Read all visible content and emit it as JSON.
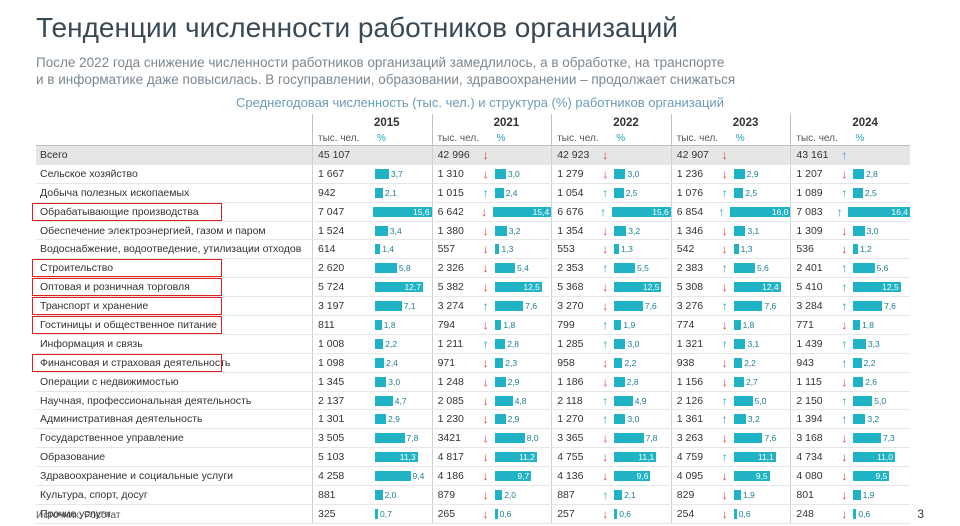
{
  "title": "Тенденции численности работников организаций",
  "subtitle_line1": "После 2022 года снижение численности работников организаций замедлилось, а в обработке, на транспорте",
  "subtitle_line2": "и в информатике даже повысилась. В госуправлении, образовании, здравоохранении – продолжает снижаться",
  "caption": "Среднегодовая численность (тыс. чел.) и структура (%) работников организаций",
  "years": [
    "2015",
    "2021",
    "2022",
    "2023",
    "2024"
  ],
  "unit_count": "тыс. чел.",
  "unit_pct": "%",
  "colors": {
    "bar": "#1fb3c5",
    "up_arrow": "#1ba3b7",
    "down_arrow": "#e03a3a",
    "highlight": "#e02020",
    "total_row_bg": "#e6e6e6"
  },
  "rows": [
    {
      "label": "Всего",
      "total": true,
      "cells": [
        {
          "v": "45 107",
          "a": "",
          "p": ""
        },
        {
          "v": "42 996",
          "a": "down",
          "p": ""
        },
        {
          "v": "42 923",
          "a": "down",
          "p": ""
        },
        {
          "v": "42 907",
          "a": "down",
          "p": ""
        },
        {
          "v": "43 161",
          "a": "up",
          "p": ""
        }
      ]
    },
    {
      "label": "Сельское хозяйство",
      "cells": [
        {
          "v": "1 667",
          "a": "",
          "p": "3,7"
        },
        {
          "v": "1 310",
          "a": "down",
          "p": "3,0"
        },
        {
          "v": "1 279",
          "a": "down",
          "p": "3,0"
        },
        {
          "v": "1 236",
          "a": "down",
          "p": "2,9"
        },
        {
          "v": "1 207",
          "a": "down",
          "p": "2,8"
        }
      ]
    },
    {
      "label": "Добыча полезных ископаемых",
      "cells": [
        {
          "v": "942",
          "a": "",
          "p": "2,1"
        },
        {
          "v": "1 015",
          "a": "up",
          "p": "2,4"
        },
        {
          "v": "1 054",
          "a": "up",
          "p": "2,5"
        },
        {
          "v": "1 076",
          "a": "up",
          "p": "2,5"
        },
        {
          "v": "1 089",
          "a": "up",
          "p": "2,5"
        }
      ]
    },
    {
      "label": "Обрабатывающие производства",
      "highlight": true,
      "cells": [
        {
          "v": "7 047",
          "a": "",
          "p": "15,6"
        },
        {
          "v": "6 642",
          "a": "down",
          "p": "15,4"
        },
        {
          "v": "6 676",
          "a": "up",
          "p": "15,6"
        },
        {
          "v": "6 854",
          "a": "up",
          "p": "16,0"
        },
        {
          "v": "7 083",
          "a": "up",
          "p": "16,4"
        }
      ]
    },
    {
      "label": "Обеспечение электроэнергией, газом и паром",
      "cells": [
        {
          "v": "1 524",
          "a": "",
          "p": "3,4"
        },
        {
          "v": "1 380",
          "a": "down",
          "p": "3,2"
        },
        {
          "v": "1 354",
          "a": "down",
          "p": "3,2"
        },
        {
          "v": "1 346",
          "a": "down",
          "p": "3,1"
        },
        {
          "v": "1 309",
          "a": "down",
          "p": "3,0"
        }
      ]
    },
    {
      "label": "Водоснабжение, водоотведение, утилизации отходов",
      "cells": [
        {
          "v": "614",
          "a": "",
          "p": "1,4"
        },
        {
          "v": "557",
          "a": "down",
          "p": "1,3"
        },
        {
          "v": "553",
          "a": "down",
          "p": "1,3"
        },
        {
          "v": "542",
          "a": "down",
          "p": "1,3"
        },
        {
          "v": "536",
          "a": "down",
          "p": "1,2"
        }
      ]
    },
    {
      "label": "Строительство",
      "highlight": true,
      "cells": [
        {
          "v": "2 620",
          "a": "",
          "p": "5,8"
        },
        {
          "v": "2 326",
          "a": "down",
          "p": "5,4"
        },
        {
          "v": "2 353",
          "a": "up",
          "p": "5,5"
        },
        {
          "v": "2 383",
          "a": "up",
          "p": "5,6"
        },
        {
          "v": "2 401",
          "a": "up",
          "p": "5,6"
        }
      ]
    },
    {
      "label": "Оптовая и розничная торговля",
      "highlight": true,
      "cells": [
        {
          "v": "5 724",
          "a": "",
          "p": "12,7"
        },
        {
          "v": "5 382",
          "a": "down",
          "p": "12,5"
        },
        {
          "v": "5 368",
          "a": "down",
          "p": "12,5"
        },
        {
          "v": "5 308",
          "a": "down",
          "p": "12,4"
        },
        {
          "v": "5 410",
          "a": "up",
          "p": "12,5"
        }
      ]
    },
    {
      "label": "Транспорт и хранение",
      "highlight": true,
      "cells": [
        {
          "v": "3 197",
          "a": "",
          "p": "7,1"
        },
        {
          "v": "3 274",
          "a": "up",
          "p": "7,6"
        },
        {
          "v": "3 270",
          "a": "down",
          "p": "7,6"
        },
        {
          "v": "3 276",
          "a": "up",
          "p": "7,6"
        },
        {
          "v": "3 284",
          "a": "up",
          "p": "7,6"
        }
      ]
    },
    {
      "label": "Гостиницы и общественное питание",
      "highlight": true,
      "cells": [
        {
          "v": "811",
          "a": "",
          "p": "1,8"
        },
        {
          "v": "794",
          "a": "down",
          "p": "1,8"
        },
        {
          "v": "799",
          "a": "up",
          "p": "1,9"
        },
        {
          "v": "774",
          "a": "down",
          "p": "1,8"
        },
        {
          "v": "771",
          "a": "down",
          "p": "1,8"
        }
      ]
    },
    {
      "label": "Информация и связь",
      "cells": [
        {
          "v": "1 008",
          "a": "",
          "p": "2,2"
        },
        {
          "v": "1 211",
          "a": "up",
          "p": "2,8"
        },
        {
          "v": "1 285",
          "a": "up",
          "p": "3,0"
        },
        {
          "v": "1 321",
          "a": "up",
          "p": "3,1"
        },
        {
          "v": "1 439",
          "a": "up",
          "p": "3,3"
        }
      ]
    },
    {
      "label": "Финансовая и страховая деятельность",
      "highlight": true,
      "cells": [
        {
          "v": "1 098",
          "a": "",
          "p": "2,4"
        },
        {
          "v": "971",
          "a": "down",
          "p": "2,3"
        },
        {
          "v": "958",
          "a": "down",
          "p": "2,2"
        },
        {
          "v": "938",
          "a": "down",
          "p": "2,2"
        },
        {
          "v": "943",
          "a": "up",
          "p": "2,2"
        }
      ]
    },
    {
      "label": "Операции с недвижимостью",
      "cells": [
        {
          "v": "1 345",
          "a": "",
          "p": "3,0"
        },
        {
          "v": "1 248",
          "a": "down",
          "p": "2,9"
        },
        {
          "v": "1 186",
          "a": "down",
          "p": "2,8"
        },
        {
          "v": "1 156",
          "a": "down",
          "p": "2,7"
        },
        {
          "v": "1 115",
          "a": "down",
          "p": "2,6"
        }
      ]
    },
    {
      "label": "Научная, профессиональная деятельность",
      "cells": [
        {
          "v": "2 137",
          "a": "",
          "p": "4,7"
        },
        {
          "v": "2 085",
          "a": "down",
          "p": "4,8"
        },
        {
          "v": "2 118",
          "a": "up",
          "p": "4,9"
        },
        {
          "v": "2 126",
          "a": "up",
          "p": "5,0"
        },
        {
          "v": "2 150",
          "a": "up",
          "p": "5,0"
        }
      ]
    },
    {
      "label": "Административная деятельность",
      "cells": [
        {
          "v": "1 301",
          "a": "",
          "p": "2,9"
        },
        {
          "v": "1 230",
          "a": "down",
          "p": "2,9"
        },
        {
          "v": "1 270",
          "a": "up",
          "p": "3,0"
        },
        {
          "v": "1 361",
          "a": "up",
          "p": "3,2"
        },
        {
          "v": "1 394",
          "a": "up",
          "p": "3,2"
        }
      ]
    },
    {
      "label": "Государственное управление",
      "cells": [
        {
          "v": "3 505",
          "a": "",
          "p": "7,8"
        },
        {
          "v": "3421",
          "a": "down",
          "p": "8,0"
        },
        {
          "v": "3 365",
          "a": "down",
          "p": "7,8"
        },
        {
          "v": "3 263",
          "a": "down",
          "p": "7,6"
        },
        {
          "v": "3 168",
          "a": "down",
          "p": "7,3"
        }
      ]
    },
    {
      "label": "Образование",
      "cells": [
        {
          "v": "5 103",
          "a": "",
          "p": "11,3"
        },
        {
          "v": "4 817",
          "a": "down",
          "p": "11,2"
        },
        {
          "v": "4 755",
          "a": "down",
          "p": "11,1"
        },
        {
          "v": "4 759",
          "a": "up",
          "p": "11,1"
        },
        {
          "v": "4 734",
          "a": "down",
          "p": "11,0"
        }
      ]
    },
    {
      "label": "Здравоохранение и социальные услуги",
      "cells": [
        {
          "v": "4 258",
          "a": "",
          "p": "9,4"
        },
        {
          "v": "4 186",
          "a": "down",
          "p": "9,7"
        },
        {
          "v": "4 136",
          "a": "down",
          "p": "9,6"
        },
        {
          "v": "4 095",
          "a": "down",
          "p": "9,5"
        },
        {
          "v": "4 080",
          "a": "down",
          "p": "9,5"
        }
      ]
    },
    {
      "label": "Культура, спорт, досуг",
      "cells": [
        {
          "v": "881",
          "a": "",
          "p": "2,0"
        },
        {
          "v": "879",
          "a": "down",
          "p": "2,0"
        },
        {
          "v": "887",
          "a": "up",
          "p": "2,1"
        },
        {
          "v": "829",
          "a": "down",
          "p": "1,9"
        },
        {
          "v": "801",
          "a": "down",
          "p": "1,9"
        }
      ]
    },
    {
      "label": "Прочие услуги",
      "cells": [
        {
          "v": "325",
          "a": "",
          "p": "0,7"
        },
        {
          "v": "265",
          "a": "down",
          "p": "0,6"
        },
        {
          "v": "257",
          "a": "down",
          "p": "0,6"
        },
        {
          "v": "254",
          "a": "down",
          "p": "0,6"
        },
        {
          "v": "248",
          "a": "down",
          "p": "0,6"
        }
      ]
    }
  ],
  "source": "Источник: Росстат",
  "page_number": "3"
}
